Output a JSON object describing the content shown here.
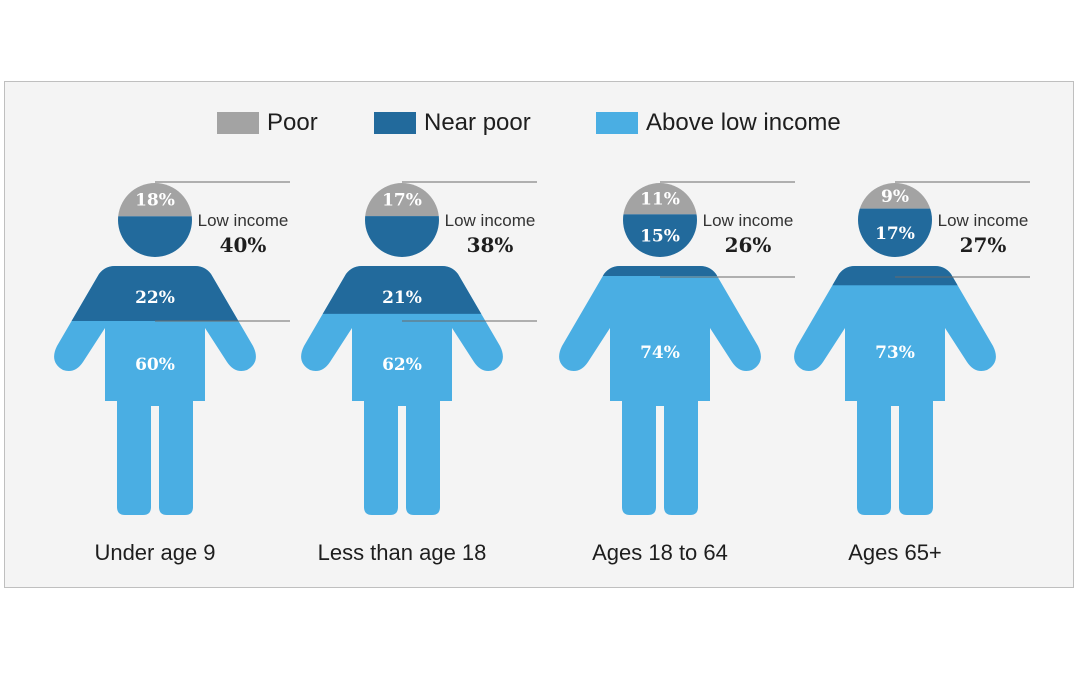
{
  "colors": {
    "poor": "#a3a3a3",
    "near_poor": "#226a9c",
    "above_low": "#4aaee3"
  },
  "chart_data": {
    "type": "bar",
    "legend": [
      "Poor",
      "Near poor",
      "Above low income"
    ],
    "low_income_label": "Low income",
    "categories": [
      "Under age 9",
      "Less than age 18",
      "Ages 18 to 64",
      "Ages 65+"
    ],
    "series": [
      {
        "name": "Poor",
        "values": [
          18,
          17,
          11,
          9
        ],
        "labels": [
          "18%",
          "17%",
          "11%",
          "9%"
        ]
      },
      {
        "name": "Near poor",
        "values": [
          22,
          21,
          15,
          17
        ],
        "labels": [
          "22%",
          "21%",
          "15%",
          "17%"
        ]
      },
      {
        "name": "Above low income",
        "values": [
          60,
          62,
          74,
          73
        ],
        "labels": [
          "60%",
          "62%",
          "74%",
          "73%"
        ]
      }
    ],
    "low_income_values": [
      40,
      38,
      26,
      27
    ],
    "low_income_labels": [
      "40%",
      "38%",
      "26%",
      "27%"
    ]
  }
}
